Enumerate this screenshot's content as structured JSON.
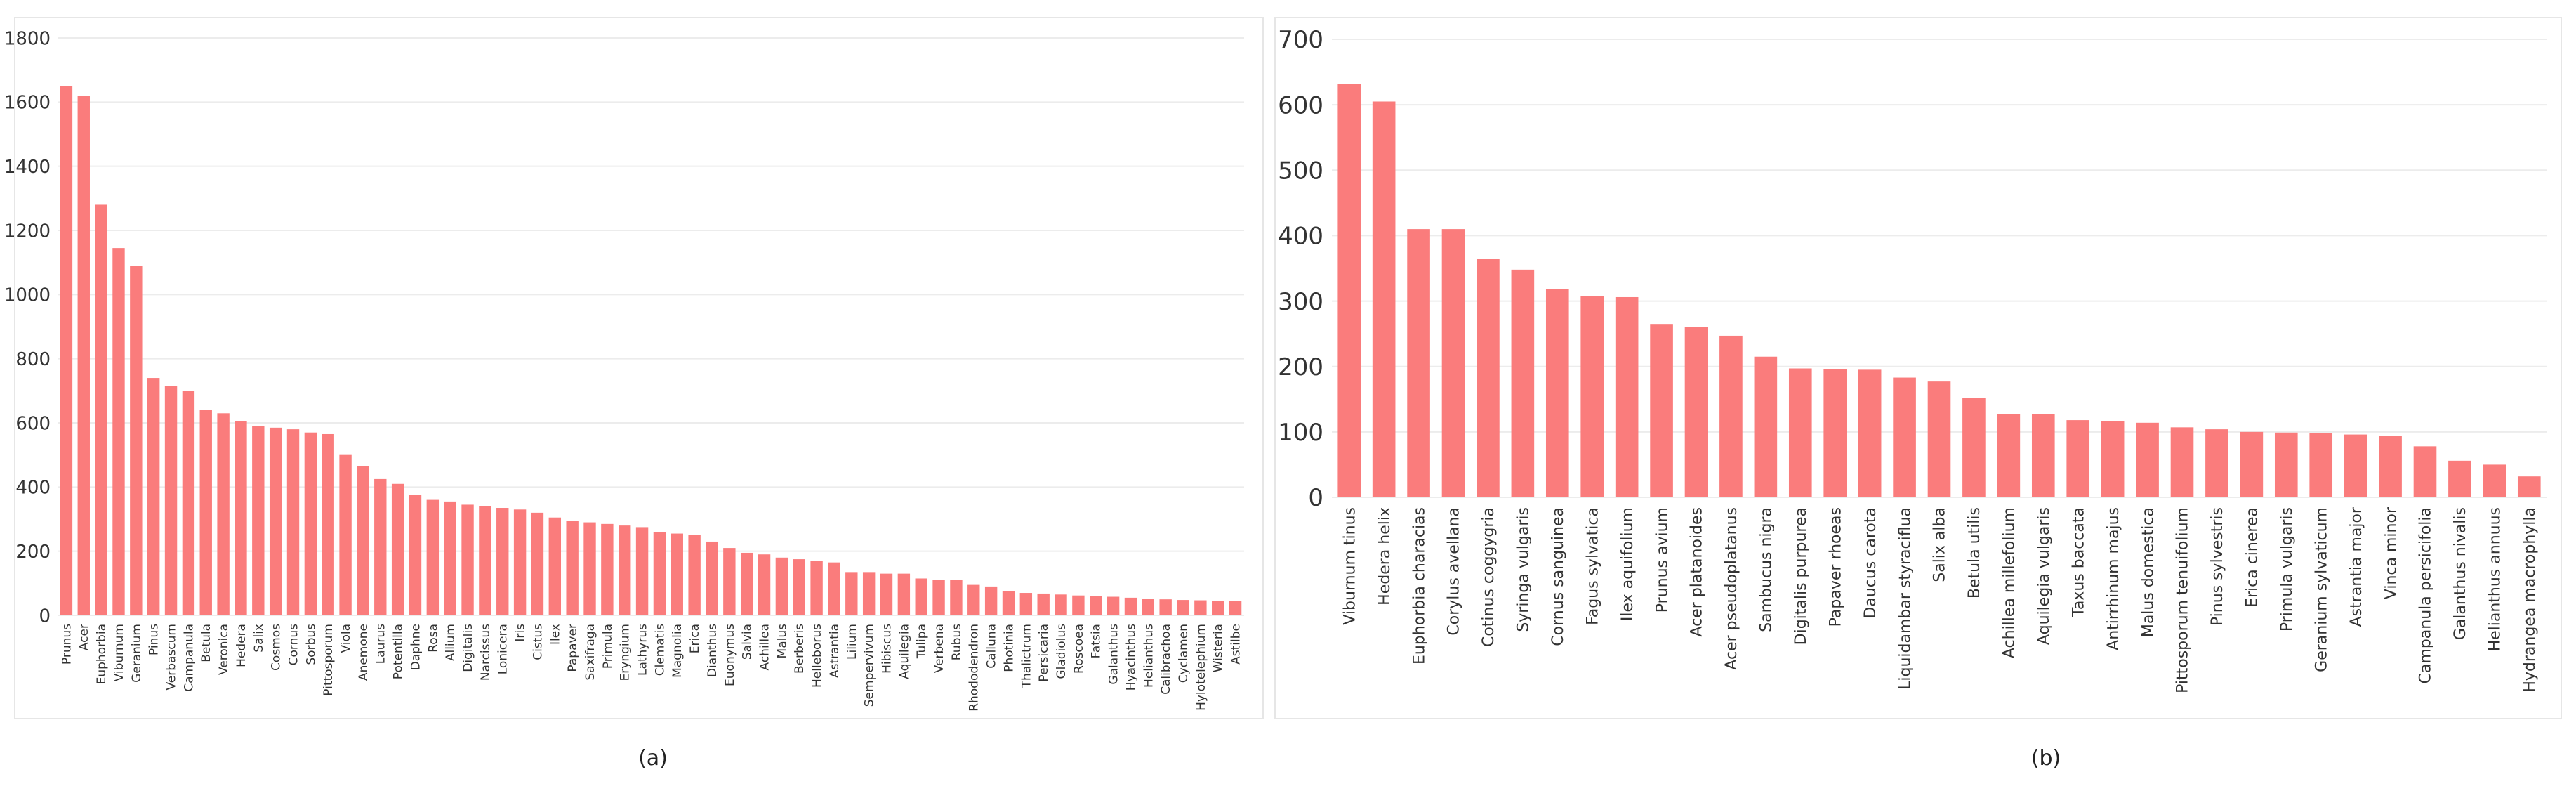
{
  "captions": [
    "(a)",
    "(b)"
  ],
  "chart_data": [
    {
      "type": "bar",
      "title": "",
      "xlabel": "",
      "ylabel": "",
      "ylim": [
        0,
        1800
      ],
      "yticks": [
        0,
        200,
        400,
        600,
        800,
        1000,
        1200,
        1400,
        1600,
        1800
      ],
      "grid": true,
      "bar_color": "#fa7c7c",
      "categories": [
        "Prunus",
        "Acer",
        "Euphorbia",
        "Viburnum",
        "Geranium",
        "Pinus",
        "Verbascum",
        "Campanula",
        "Betula",
        "Veronica",
        "Hedera",
        "Salix",
        "Cosmos",
        "Cornus",
        "Sorbus",
        "Pittosporum",
        "Viola",
        "Anemone",
        "Laurus",
        "Potentilla",
        "Daphne",
        "Rosa",
        "Allium",
        "Digitalis",
        "Narcissus",
        "Lonicera",
        "Iris",
        "Cistus",
        "Ilex",
        "Papaver",
        "Saxifraga",
        "Primula",
        "Eryngium",
        "Lathyrus",
        "Clematis",
        "Magnolia",
        "Erica",
        "Dianthus",
        "Euonymus",
        "Salvia",
        "Achillea",
        "Malus",
        "Berberis",
        "Helleborus",
        "Astrantia",
        "Lilium",
        "Sempervivum",
        "Hibiscus",
        "Aquilegia",
        "Tulipa",
        "Verbena",
        "Rubus",
        "Rhododendron",
        "Calluna",
        "Photinia",
        "Thalictrum",
        "Persicaria",
        "Gladiolus",
        "Roscoea",
        "Fatsia",
        "Galanthus",
        "Hyacinthus",
        "Helianthus",
        "Calibrachoa",
        "Cyclamen",
        "Hylotelephium",
        "Wisteria",
        "Astilbe"
      ],
      "values": [
        1650,
        1620,
        1280,
        1145,
        1090,
        740,
        715,
        700,
        640,
        630,
        605,
        590,
        585,
        580,
        570,
        565,
        500,
        465,
        425,
        410,
        375,
        360,
        355,
        345,
        340,
        335,
        330,
        320,
        305,
        295,
        290,
        285,
        280,
        275,
        260,
        255,
        250,
        230,
        210,
        195,
        190,
        180,
        175,
        170,
        165,
        135,
        135,
        130,
        130,
        115,
        110,
        110,
        95,
        90,
        75,
        70,
        68,
        65,
        62,
        60,
        58,
        55,
        52,
        50,
        48,
        47,
        46,
        45
      ]
    },
    {
      "type": "bar",
      "title": "",
      "xlabel": "",
      "ylabel": "",
      "ylim": [
        0,
        700
      ],
      "yticks": [
        0,
        100,
        200,
        300,
        400,
        500,
        600,
        700
      ],
      "grid": true,
      "bar_color": "#fa7c7c",
      "categories": [
        "Viburnum tinus",
        "Hedera helix",
        "Euphorbia characias",
        "Corylus avellana",
        "Cotinus coggygria",
        "Syringa vulgaris",
        "Cornus sanguinea",
        "Fagus sylvatica",
        "Ilex aquifolium",
        "Prunus avium",
        "Acer platanoides",
        "Acer pseudoplatanus",
        "Sambucus nigra",
        "Digitalis purpurea",
        "Papaver rhoeas",
        "Daucus carota",
        "Liquidambar styraciflua",
        "Salix alba",
        "Betula utilis",
        "Achillea millefolium",
        "Aquilegia vulgaris",
        "Taxus baccata",
        "Antirrhinum majus",
        "Malus domestica",
        "Pittosporum tenuifolium",
        "Pinus sylvestris",
        "Erica cinerea",
        "Primula vulgaris",
        "Geranium sylvaticum",
        "Astrantia major",
        "Vinca minor",
        "Campanula persicifolia",
        "Galanthus nivalis",
        "Helianthus annuus",
        "Hydrangea macrophylla"
      ],
      "values": [
        632,
        605,
        410,
        410,
        365,
        348,
        318,
        308,
        306,
        265,
        260,
        247,
        215,
        197,
        196,
        195,
        183,
        177,
        152,
        127,
        127,
        118,
        116,
        114,
        107,
        104,
        100,
        99,
        98,
        96,
        94,
        78,
        56,
        50,
        32
      ]
    }
  ]
}
